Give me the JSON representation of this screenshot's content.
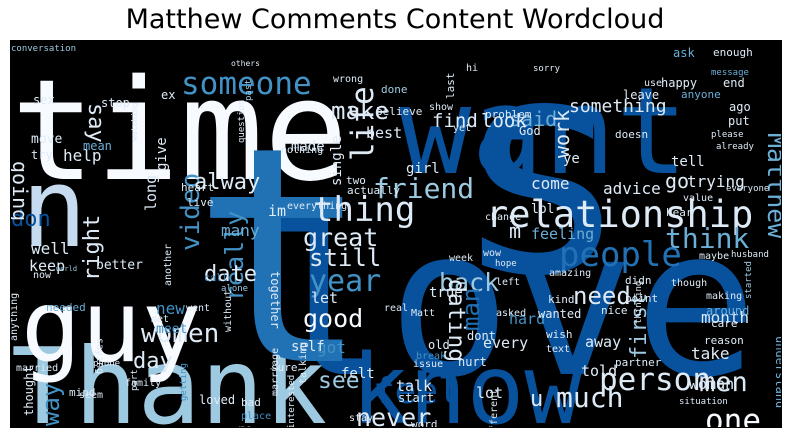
{
  "title": "Matthew Comments Content Wordcloud",
  "palette": [
    "#08306b",
    "#08519c",
    "#2171b5",
    "#4292c6",
    "#6baed6",
    "#9ecae1",
    "#c6dbef",
    "#deebf7",
    "#f7fbff"
  ],
  "words": [
    {
      "t": "love"
    },
    {
      "t": "s"
    },
    {
      "t": "time"
    },
    {
      "t": "want"
    },
    {
      "t": "Thank"
    },
    {
      "t": "know"
    },
    {
      "t": "n"
    },
    {
      "t": "guy"
    },
    {
      "t": "t"
    },
    {
      "t": "relationship"
    },
    {
      "t": "someone"
    },
    {
      "t": "thing"
    },
    {
      "t": "people"
    },
    {
      "t": "one"
    },
    {
      "t": "life"
    },
    {
      "t": "friend"
    },
    {
      "t": "think"
    },
    {
      "t": "year"
    },
    {
      "t": "video"
    },
    {
      "t": "feel"
    },
    {
      "t": "women"
    },
    {
      "t": "person"
    },
    {
      "t": "men"
    },
    {
      "t": "much"
    },
    {
      "t": "Matthew"
    },
    {
      "t": "make"
    },
    {
      "t": "say"
    },
    {
      "t": "really"
    },
    {
      "t": "great"
    },
    {
      "t": "date"
    },
    {
      "t": "good"
    },
    {
      "t": "still"
    },
    {
      "t": "back"
    },
    {
      "t": "way"
    },
    {
      "t": "need"
    },
    {
      "t": "dating"
    },
    {
      "t": "man"
    },
    {
      "t": "even"
    },
    {
      "t": "never"
    },
    {
      "t": "see"
    },
    {
      "t": "day"
    },
    {
      "t": "alway"
    },
    {
      "t": "right"
    },
    {
      "t": "don"
    },
    {
      "t": "going"
    },
    {
      "t": "said"
    },
    {
      "t": "work"
    },
    {
      "t": "something"
    },
    {
      "t": "go"
    },
    {
      "t": "advice"
    },
    {
      "t": "trying"
    },
    {
      "t": "first"
    },
    {
      "t": "m"
    },
    {
      "t": "u"
    },
    {
      "t": "find"
    },
    {
      "t": "look"
    },
    {
      "t": "best"
    },
    {
      "t": "help"
    },
    {
      "t": "give"
    },
    {
      "t": "made"
    },
    {
      "t": "single"
    },
    {
      "t": "girl"
    },
    {
      "t": "im"
    },
    {
      "t": "long"
    },
    {
      "t": "come"
    },
    {
      "t": "feeling"
    },
    {
      "t": "lot"
    },
    {
      "t": "talk"
    },
    {
      "t": "told"
    },
    {
      "t": "take"
    },
    {
      "t": "month"
    },
    {
      "t": "woman"
    },
    {
      "t": "understand"
    },
    {
      "t": "many"
    },
    {
      "t": "got"
    },
    {
      "t": "let"
    },
    {
      "t": "better"
    },
    {
      "t": "well"
    },
    {
      "t": "keep"
    },
    {
      "t": "new"
    },
    {
      "t": "meet"
    },
    {
      "t": "together"
    },
    {
      "t": "self"
    },
    {
      "t": "felt"
    },
    {
      "t": "every"
    },
    {
      "t": "hard"
    },
    {
      "t": "true"
    },
    {
      "t": "away"
    },
    {
      "t": "thought"
    },
    {
      "t": "ye"
    },
    {
      "t": "tell"
    },
    {
      "t": "lol"
    },
    {
      "t": "move"
    },
    {
      "t": "try"
    },
    {
      "t": "mean"
    },
    {
      "t": "sex"
    },
    {
      "t": "stop"
    },
    {
      "t": "ex"
    },
    {
      "t": "wrong"
    },
    {
      "t": "conversation"
    },
    {
      "t": "went"
    },
    {
      "t": "enough"
    },
    {
      "t": "ask"
    },
    {
      "t": "happy"
    },
    {
      "t": "end"
    },
    {
      "t": "anyone"
    },
    {
      "t": "ago"
    },
    {
      "t": "put"
    },
    {
      "t": "leave"
    },
    {
      "t": "problem"
    },
    {
      "t": "last"
    },
    {
      "t": "God"
    },
    {
      "t": "doesn"
    },
    {
      "t": "believe"
    },
    {
      "t": "done"
    },
    {
      "t": "show"
    },
    {
      "t": "question"
    },
    {
      "t": "past"
    },
    {
      "t": "others"
    },
    {
      "t": "watching"
    },
    {
      "t": "heart"
    },
    {
      "t": "live"
    },
    {
      "t": "nothing"
    },
    {
      "t": "two"
    },
    {
      "t": "actually"
    },
    {
      "t": "everything"
    },
    {
      "t": "without"
    },
    {
      "t": "another"
    },
    {
      "t": "call"
    },
    {
      "t": "alone"
    },
    {
      "t": "world"
    },
    {
      "t": "now"
    },
    {
      "t": "anything"
    },
    {
      "t": "saying"
    },
    {
      "t": "part"
    },
    {
      "t": "needed"
    },
    {
      "t": "met"
    },
    {
      "t": "married"
    },
    {
      "t": "phone"
    },
    {
      "t": "family"
    },
    {
      "t": "getting"
    },
    {
      "t": "seem"
    },
    {
      "t": "mind"
    },
    {
      "t": "loved"
    },
    {
      "t": "bad"
    },
    {
      "t": "place"
    },
    {
      "t": "re"
    },
    {
      "t": "talking"
    },
    {
      "t": "sure"
    },
    {
      "t": "marriage"
    },
    {
      "t": "start"
    },
    {
      "t": "stay"
    },
    {
      "t": "word"
    },
    {
      "t": "interested"
    },
    {
      "t": "different"
    },
    {
      "t": "issue"
    },
    {
      "t": "break"
    },
    {
      "t": "old"
    },
    {
      "t": "hurt"
    },
    {
      "t": "dont"
    },
    {
      "t": "Matt"
    },
    {
      "t": "asked"
    },
    {
      "t": "real"
    },
    {
      "t": "left"
    },
    {
      "t": "hope"
    },
    {
      "t": "week"
    },
    {
      "t": "wow"
    },
    {
      "t": "change"
    },
    {
      "t": "amazing"
    },
    {
      "t": "didn"
    },
    {
      "t": "point"
    },
    {
      "t": "nice"
    },
    {
      "t": "wanted"
    },
    {
      "t": "kind"
    },
    {
      "t": "wish"
    },
    {
      "t": "text"
    },
    {
      "t": "partner"
    },
    {
      "t": "thinking"
    },
    {
      "t": "reason"
    },
    {
      "t": "making"
    },
    {
      "t": "around"
    },
    {
      "t": "care"
    },
    {
      "t": "situation"
    },
    {
      "t": "though"
    },
    {
      "t": "started"
    },
    {
      "t": "maybe"
    },
    {
      "t": "husband"
    },
    {
      "t": "found"
    },
    {
      "t": "hear"
    },
    {
      "t": "everyone"
    },
    {
      "t": "value"
    },
    {
      "t": "already"
    },
    {
      "t": "please"
    },
    {
      "t": "message"
    },
    {
      "t": "yet"
    },
    {
      "t": "hi"
    },
    {
      "t": "use"
    },
    {
      "t": "sorry"
    }
  ]
}
